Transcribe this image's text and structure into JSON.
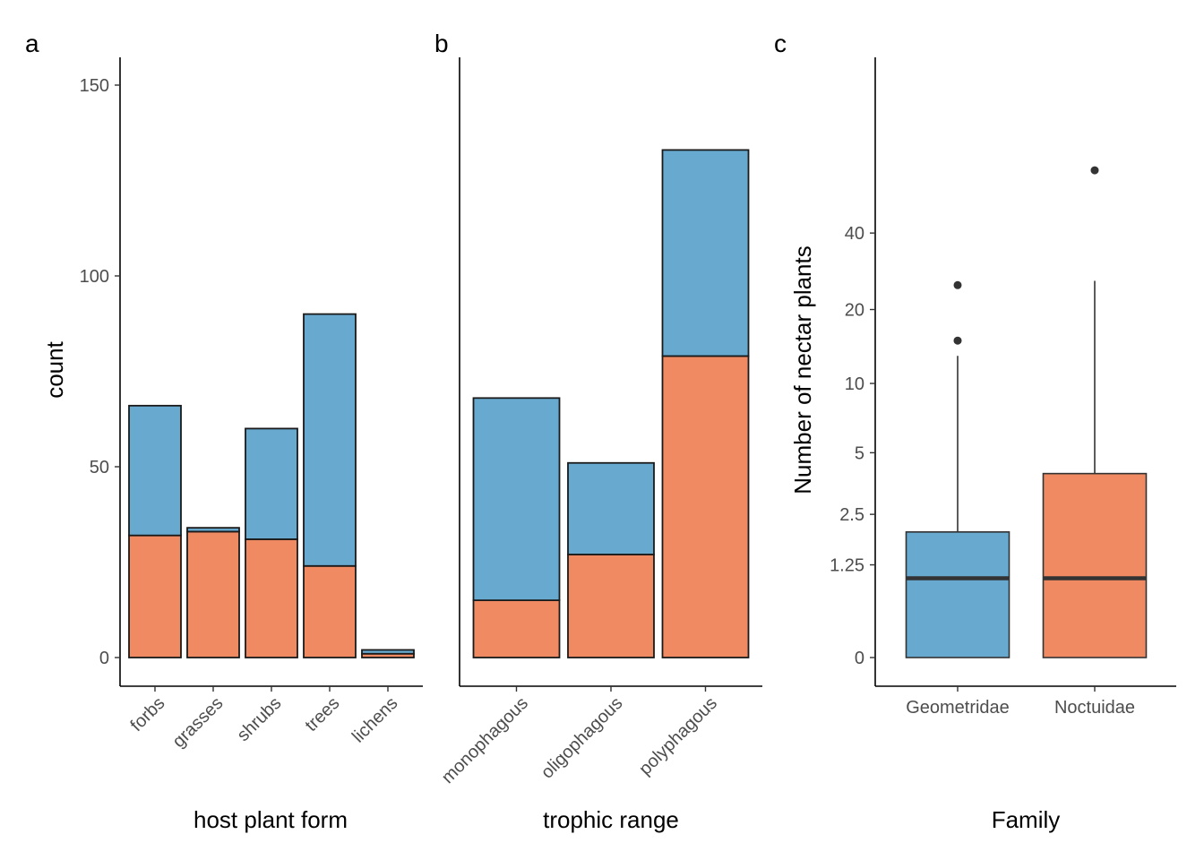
{
  "colors": {
    "blue": "#67a9cf",
    "orange": "#ef8a62",
    "outline": "#1a1a1a",
    "median": "#333333"
  },
  "chart_data": [
    {
      "panel_label": "a",
      "type": "bar",
      "stacked": true,
      "categories": [
        "forbs",
        "grasses",
        "shrubs",
        "trees",
        "lichens"
      ],
      "series": [
        {
          "color": "orange",
          "values": [
            32,
            33,
            31,
            24,
            1
          ]
        },
        {
          "color": "blue",
          "values": [
            34,
            1,
            29,
            66,
            1
          ]
        }
      ],
      "xlabel": "host plant form",
      "ylabel": "count",
      "ylim": [
        -7,
        157
      ],
      "yticks": [
        0,
        50,
        100,
        150
      ],
      "grid": false
    },
    {
      "panel_label": "b",
      "type": "bar",
      "stacked": true,
      "categories": [
        "monophagous",
        "oligophagous",
        "polyphagous"
      ],
      "series": [
        {
          "color": "orange",
          "values": [
            15,
            27,
            79
          ]
        },
        {
          "color": "blue",
          "values": [
            53,
            24,
            54
          ]
        }
      ],
      "xlabel": "trophic range",
      "ylabel": "",
      "ylim": [
        -7,
        157
      ],
      "yticks": [],
      "grid": false
    },
    {
      "panel_label": "c",
      "type": "box",
      "categories": [
        "Geometridae",
        "Noctuidae"
      ],
      "boxes": [
        {
          "color": "blue",
          "q1": 0,
          "median": 1,
          "q3": 2,
          "whisker_low": 0,
          "whisker_high": 13,
          "outliers": [
            15,
            25
          ]
        },
        {
          "color": "orange",
          "q1": 0,
          "median": 1,
          "q3": 4,
          "whisker_low": 0,
          "whisker_high": 26,
          "outliers": [
            70
          ]
        }
      ],
      "xlabel": "Family",
      "ylabel": "Number of nectar plants",
      "y_scale": "log1p",
      "yticks": [
        0,
        1.25,
        2.5,
        5,
        10,
        20,
        40
      ],
      "ytick_labels": [
        "0",
        "1.25",
        "2.5",
        "5",
        "10",
        "20",
        "40"
      ],
      "grid": false
    }
  ]
}
